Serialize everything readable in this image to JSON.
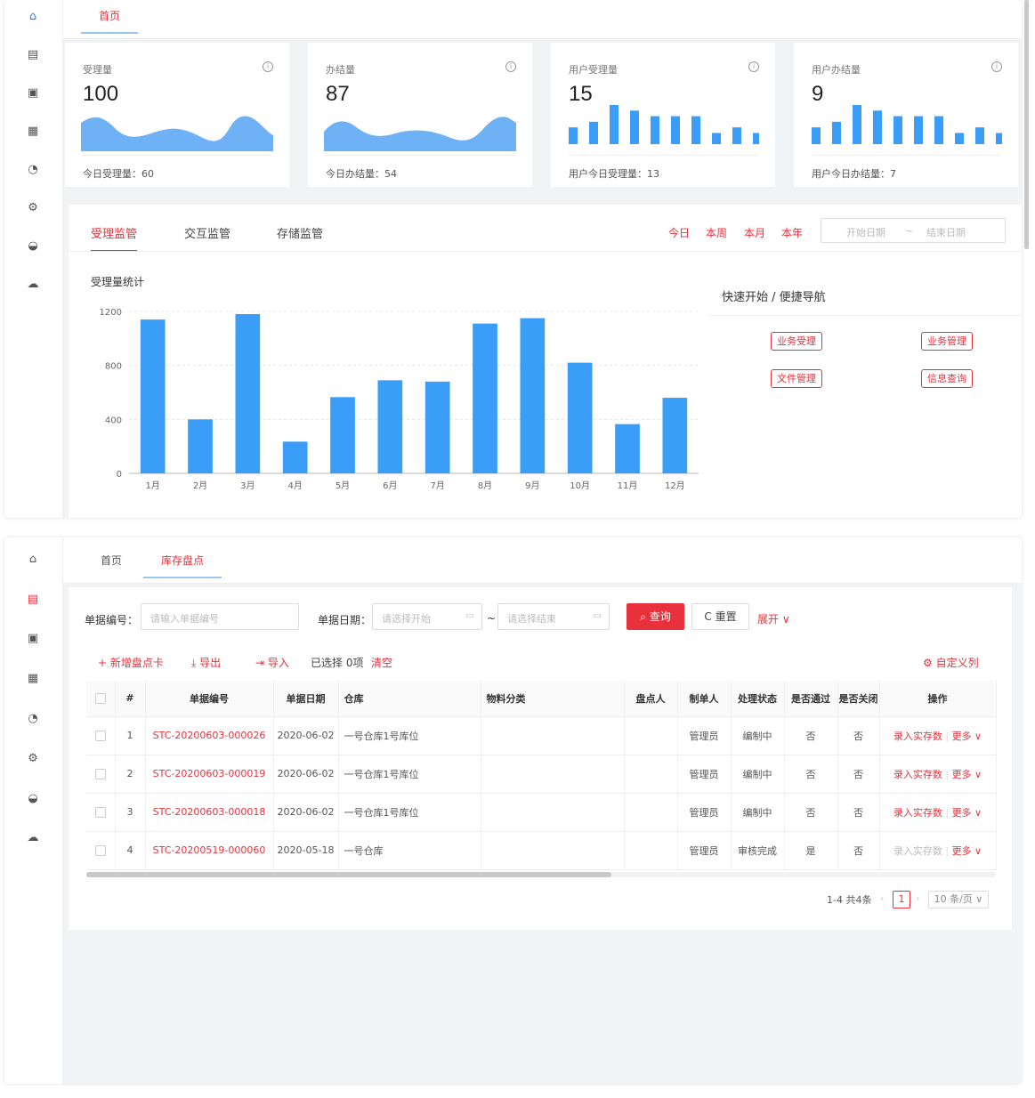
{
  "dashboard": {
    "tabs": [
      "首页"
    ],
    "cards": [
      {
        "label": "受理量",
        "value": "100",
        "foot": "今日受理量：60",
        "type": "area"
      },
      {
        "label": "办结量",
        "value": "87",
        "foot": "今日办结量：54",
        "type": "area"
      },
      {
        "label": "用户受理量",
        "value": "15",
        "foot": "用户今日受理量：13",
        "type": "bars",
        "bars": [
          3,
          4,
          7,
          6,
          5,
          5,
          5,
          2,
          3,
          2
        ]
      },
      {
        "label": "用户办结量",
        "value": "9",
        "foot": "用户今日办结量：7",
        "type": "bars",
        "bars": [
          3,
          4,
          7,
          6,
          5,
          5,
          5,
          2,
          3,
          2
        ]
      }
    ],
    "monitor_tabs": [
      "受理监管",
      "交互监管",
      "存储监管"
    ],
    "ranges": [
      "今日",
      "本周",
      "本月",
      "本年"
    ],
    "date_start": "开始日期",
    "date_sep": "~",
    "date_end": "结束日期",
    "chart_title": "受理量统计",
    "quick_title": "快速开始 / 便捷导航",
    "quick_links": [
      "业务受理",
      "业务管理",
      "文件管理",
      "信息查询"
    ]
  },
  "chart_data": {
    "type": "bar",
    "title": "受理量统计",
    "categories": [
      "1月",
      "2月",
      "3月",
      "4月",
      "5月",
      "6月",
      "7月",
      "8月",
      "9月",
      "10月",
      "11月",
      "12月"
    ],
    "values": [
      1140,
      400,
      1180,
      235,
      565,
      690,
      680,
      1110,
      1150,
      820,
      365,
      560
    ],
    "yticks": [
      "0",
      "400",
      "800",
      "1200"
    ],
    "ylim": [
      0,
      1200
    ],
    "color": "#3a9df7"
  },
  "inventory": {
    "tabs": [
      "首页",
      "库存盘点"
    ],
    "filter": {
      "no_label": "单据编号：",
      "no_placeholder": "请输入单据编号",
      "date_label": "单据日期：",
      "start_placeholder": "请选择开始",
      "sep": "~",
      "end_placeholder": "请选择结束",
      "query": "查询",
      "reset": "重置",
      "expand": "展开"
    },
    "toolbar": {
      "add": "新增盘点卡",
      "export": "导出",
      "import": "导入",
      "selected": "已选择 0项",
      "clear": "清空",
      "custom_cols": "自定义列"
    },
    "columns": [
      "#",
      "单据编号",
      "单据日期",
      "仓库",
      "物料分类",
      "盘点人",
      "制单人",
      "处理状态",
      "是否通过",
      "是否关闭",
      "操作"
    ],
    "rows": [
      {
        "idx": "1",
        "no": "STC-20200603-000026",
        "date": "2020-06-02",
        "wh": "一号仓库1号库位",
        "cat": "",
        "checker": "",
        "maker": "管理员",
        "status": "编制中",
        "passed": "否",
        "closed": "否",
        "action": "录入实存数",
        "more": "更多"
      },
      {
        "idx": "2",
        "no": "STC-20200603-000019",
        "date": "2020-06-02",
        "wh": "一号仓库1号库位",
        "cat": "",
        "checker": "",
        "maker": "管理员",
        "status": "编制中",
        "passed": "否",
        "closed": "否",
        "action": "录入实存数",
        "more": "更多"
      },
      {
        "idx": "3",
        "no": "STC-20200603-000018",
        "date": "2020-06-02",
        "wh": "一号仓库1号库位",
        "cat": "",
        "checker": "",
        "maker": "管理员",
        "status": "编制中",
        "passed": "否",
        "closed": "否",
        "action": "录入实存数",
        "more": "更多"
      },
      {
        "idx": "4",
        "no": "STC-20200519-000060",
        "date": "2020-05-18",
        "wh": "一号仓库",
        "cat": "",
        "checker": "",
        "maker": "管理员",
        "status": "审核完成",
        "passed": "是",
        "closed": "否",
        "action": "录入实存数",
        "more": "更多"
      }
    ],
    "pagination": {
      "total": "1-4 共4条",
      "page": "1",
      "size": "10 条/页"
    }
  }
}
